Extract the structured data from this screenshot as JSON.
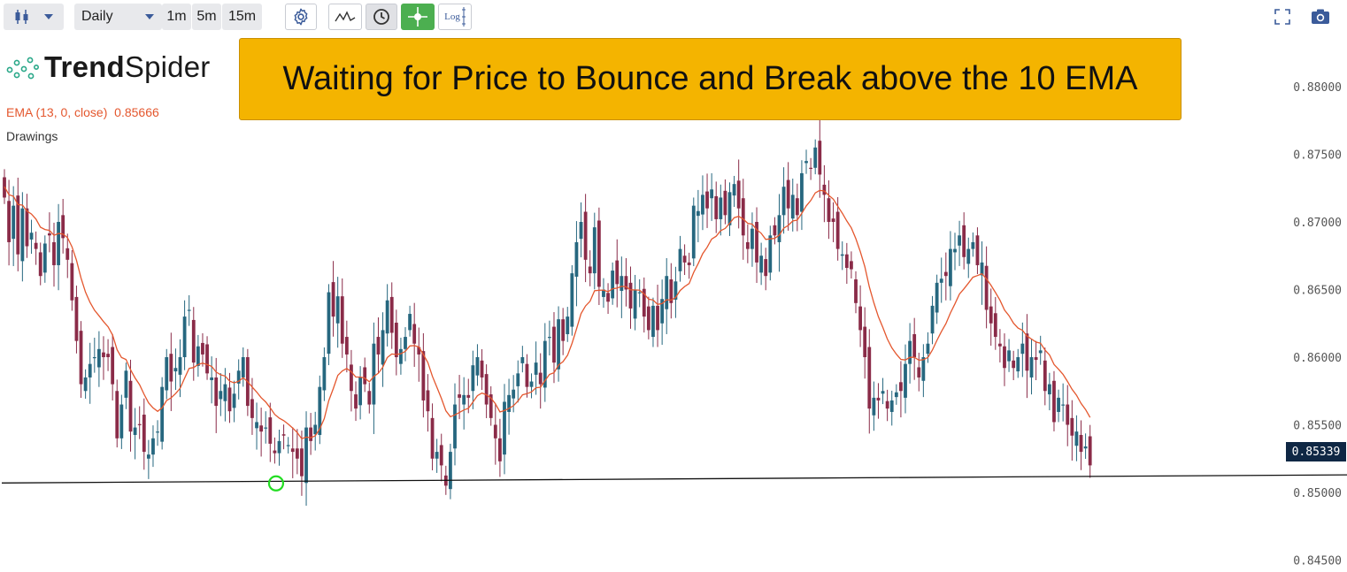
{
  "toolbar": {
    "chart_type_icon": "candlestick-icon",
    "dropdown_icon": "chevron-down-icon",
    "timeframe_select": "Daily",
    "quick_timeframes": [
      "1m",
      "5m",
      "15m"
    ],
    "settings_icon": "gear-icon",
    "indicator_icon": "line-chart-icon",
    "clock_icon": "clock-icon",
    "crosshair_icon": "crosshair-icon",
    "log_label": "Log",
    "fullscreen_icon": "fullscreen-icon",
    "camera_icon": "camera-icon"
  },
  "logo": {
    "text_bold": "Trend",
    "text_regular": "Spider"
  },
  "banner": {
    "text": "Waiting for Price to Bounce and Break above the 10 EMA"
  },
  "legend": {
    "ema": "EMA (13, 0, close)",
    "ema_value": "0.85666",
    "drawings": "Drawings"
  },
  "colors": {
    "up": "#26677f",
    "down": "#8a2b48",
    "ema": "#e4572e",
    "accent_green": "#4caf50",
    "banner": "#f4b400"
  },
  "chart_data": {
    "type": "candlestick",
    "ylim": [
      0.8445,
      0.8825
    ],
    "yticks": [
      "0.88000",
      "0.87500",
      "0.87000",
      "0.86500",
      "0.86000",
      "0.85500",
      "0.85000",
      "0.84500"
    ],
    "last_price": "0.85339",
    "support_line": {
      "from": [
        0,
        0.8507
      ],
      "to": [
        259,
        0.8513
      ]
    },
    "marker": {
      "index": 66,
      "value": 0.8508
    },
    "series": [
      {
        "name": "EMA (13, 0, close)",
        "type": "line"
      }
    ]
  }
}
